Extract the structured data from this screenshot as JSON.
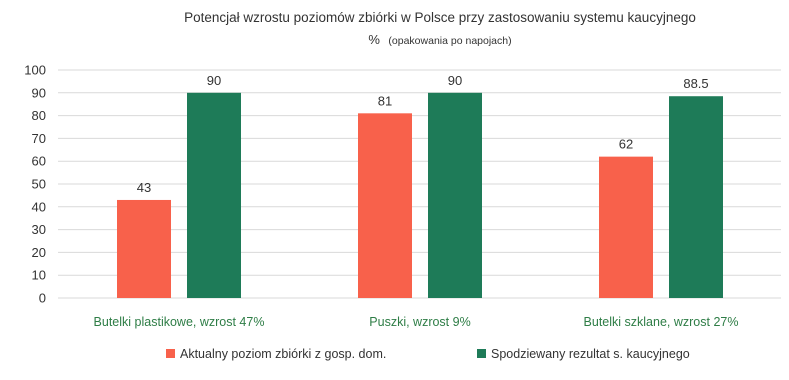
{
  "chart_data": {
    "type": "bar",
    "title": "Potencjał wzrostu poziomów zbiórki w Polsce przy zastosowaniu systemu kaucyjnego",
    "subtitle_unit": "%",
    "subtitle_note": "(opakowania po napojach)",
    "categories": [
      "Butelki plastikowe, wzrost 47%",
      "Puszki, wzrost 9%",
      "Butelki szklane, wzrost 27%"
    ],
    "series": [
      {
        "name": "Aktualny poziom zbiórki z gosp. dom.",
        "values": [
          43,
          81,
          62
        ],
        "labels": [
          "43",
          "81",
          "62"
        ],
        "color": "#f8614b"
      },
      {
        "name": "Spodziewany rezultat s. kaucyjnego",
        "values": [
          90,
          90,
          88.5
        ],
        "labels": [
          "90",
          "90",
          "88.5"
        ],
        "color": "#1e7b58"
      }
    ],
    "ylim": [
      0,
      100
    ],
    "yticks": [
      "0",
      "10",
      "20",
      "30",
      "40",
      "50",
      "60",
      "70",
      "80",
      "90",
      "100"
    ],
    "grid": true,
    "legend": "bottom",
    "category_label_color": "#2e7d46",
    "text_color": "#333333",
    "grid_color": "#d9d9d9"
  }
}
